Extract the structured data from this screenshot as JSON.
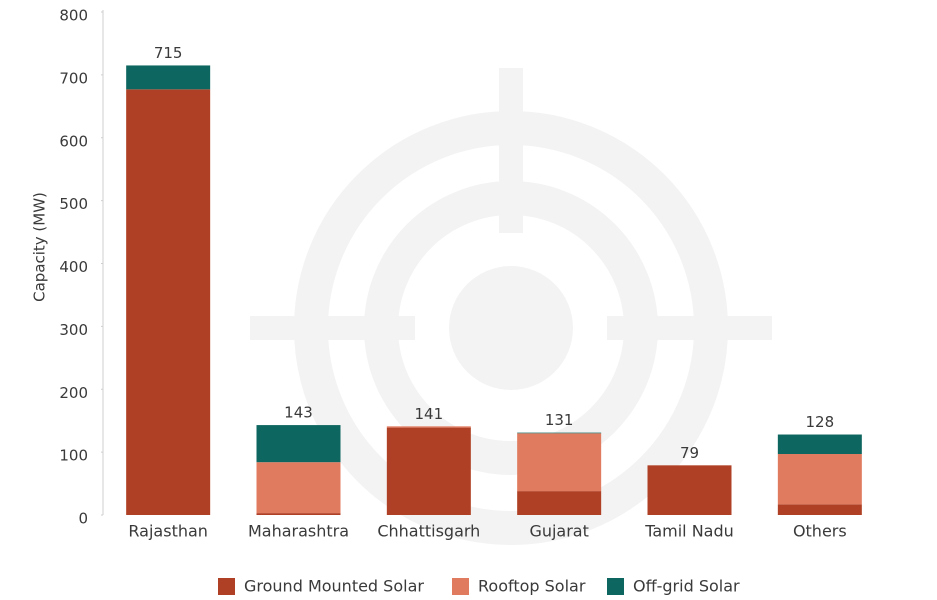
{
  "chart_data": {
    "type": "stacked_bar",
    "y_label": "Capacity (MW)",
    "categories": [
      "Rajasthan",
      "Maharashtra",
      "Chhattisgarh",
      "Gujarat",
      "Tamil Nadu",
      "Others"
    ],
    "series": [
      {
        "name": "Ground Mounted Solar",
        "color": "#b04025",
        "values": [
          677,
          3,
          139,
          38,
          79,
          17
        ]
      },
      {
        "name": "Rooftop Solar",
        "color": "#e07b5f",
        "values": [
          0,
          81,
          2,
          92,
          0,
          80
        ]
      },
      {
        "name": "Off-grid Solar",
        "color": "#0e6660",
        "values": [
          38,
          59,
          0,
          1,
          0,
          31
        ]
      }
    ],
    "totals": [
      715,
      143,
      141,
      131,
      79,
      128
    ],
    "ylim": [
      0,
      800
    ],
    "yticks": [
      0,
      100,
      200,
      300,
      400,
      500,
      600,
      700,
      800
    ],
    "legend": "bottom"
  }
}
